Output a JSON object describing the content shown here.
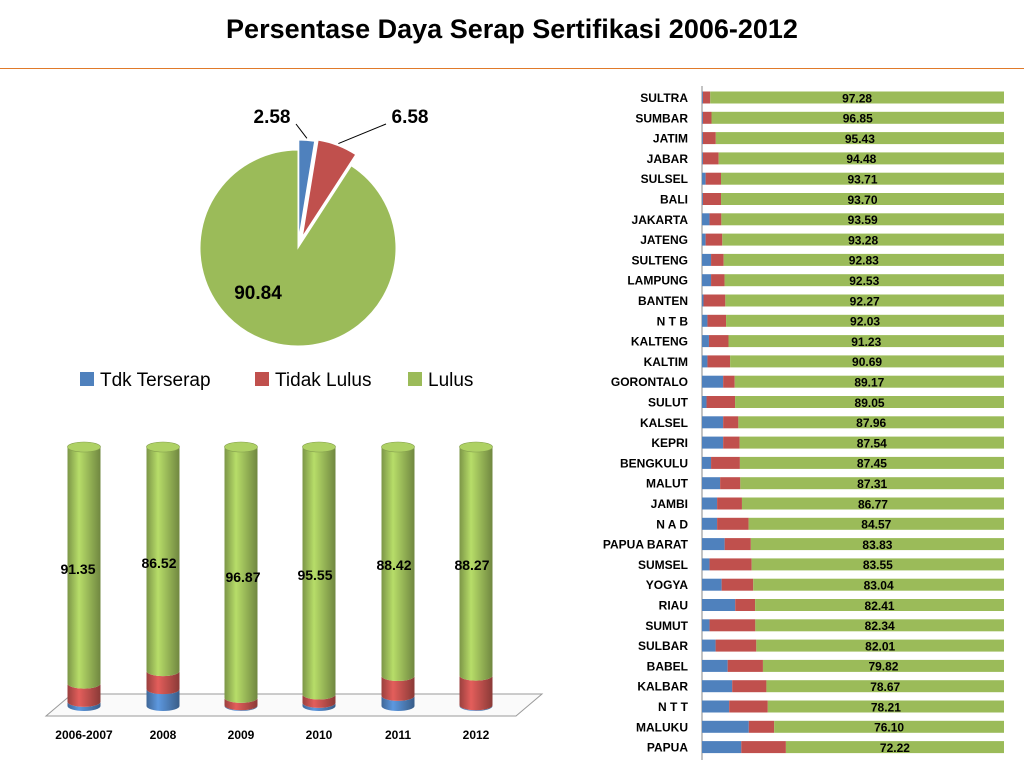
{
  "title": "Persentase Daya Serap Sertifikasi 2006-2012",
  "colors": {
    "tdk_terserap": "#4f81bd",
    "tidak_lulus": "#c0504d",
    "lulus": "#9bbb59",
    "rule": "#e07a2a"
  },
  "chart_data": [
    {
      "type": "pie",
      "series": [
        {
          "name": "Tdk Terserap",
          "value": 2.58
        },
        {
          "name": "Tidak Lulus",
          "value": 6.58
        },
        {
          "name": "Lulus",
          "value": 90.84
        }
      ],
      "legend_position": "bottom"
    },
    {
      "type": "bar",
      "stacked": true,
      "orientation": "vertical",
      "style": "3d-cylinder",
      "categories": [
        "2006-2007",
        "2008",
        "2009",
        "2010",
        "2011",
        "2012"
      ],
      "series": [
        {
          "name": "Tdk Terserap",
          "values": [
            1.6,
            6.5,
            0.3,
            1.2,
            3.9,
            0.3
          ]
        },
        {
          "name": "Tidak Lulus",
          "values": [
            7.05,
            6.98,
            2.83,
            3.25,
            7.68,
            11.43
          ]
        },
        {
          "name": "Lulus",
          "values": [
            91.35,
            86.52,
            96.87,
            95.55,
            88.42,
            88.27
          ]
        }
      ],
      "labels": [
        "91.35",
        "86.52",
        "96.87",
        "95.55",
        "88.42",
        "88.27"
      ],
      "ylim": [
        0,
        100
      ]
    },
    {
      "type": "bar",
      "stacked": true,
      "orientation": "horizontal",
      "categories": [
        "SULTRA",
        "SUMBAR",
        "JATIM",
        "JABAR",
        "SULSEL",
        "BALI",
        "JAKARTA",
        "JATENG",
        "SULTENG",
        "LAMPUNG",
        "BANTEN",
        "N T B",
        "KALTENG",
        "KALTIM",
        "GORONTALO",
        "SULUT",
        "KALSEL",
        "KEPRI",
        "BENGKULU",
        "MALUT",
        "JAMBI",
        "N A D",
        "PAPUA BARAT",
        "SUMSEL",
        "YOGYA",
        "RIAU",
        "SUMUT",
        "SULBAR",
        "BABEL",
        "KALBAR",
        "N T T",
        "MALUKU",
        "PAPUA"
      ],
      "series": [
        {
          "name": "Tdk Terserap",
          "values": [
            0.3,
            0.3,
            0.3,
            0.3,
            1.2,
            0.3,
            2.5,
            1.2,
            3.0,
            3.0,
            0.5,
            1.8,
            2.3,
            1.8,
            7.0,
            1.5,
            7.0,
            7.0,
            3.0,
            6.0,
            5.0,
            5.0,
            7.5,
            2.5,
            6.5,
            11.0,
            2.5,
            4.5,
            8.5,
            10.0,
            9.0,
            15.5,
            13.0
          ]
        },
        {
          "name": "Tidak Lulus",
          "values": [
            2.42,
            2.85,
            4.27,
            5.22,
            5.09,
            6.0,
            3.91,
            5.52,
            4.17,
            4.47,
            7.23,
            6.17,
            6.47,
            7.51,
            3.83,
            9.45,
            5.04,
            5.46,
            9.55,
            6.69,
            8.23,
            10.43,
            8.67,
            13.95,
            10.46,
            6.59,
            15.16,
            13.49,
            11.68,
            11.33,
            12.79,
            8.4,
            14.78
          ]
        },
        {
          "name": "Lulus",
          "values": [
            97.28,
            96.85,
            95.43,
            94.48,
            93.71,
            93.7,
            93.59,
            93.28,
            92.83,
            92.53,
            92.27,
            92.03,
            91.23,
            90.69,
            89.17,
            89.05,
            87.96,
            87.54,
            87.45,
            87.31,
            86.77,
            84.57,
            83.83,
            83.55,
            83.04,
            82.41,
            82.34,
            82.01,
            79.82,
            78.67,
            78.21,
            76.1,
            72.22
          ]
        }
      ],
      "labels": [
        "97.28",
        "96.85",
        "95.43",
        "94.48",
        "93.71",
        "93.70",
        "93.59",
        "93.28",
        "92.83",
        "92.53",
        "92.27",
        "92.03",
        "91.23",
        "90.69",
        "89.17",
        "89.05",
        "87.96",
        "87.54",
        "87.45",
        "87.31",
        "86.77",
        "84.57",
        "83.83",
        "83.55",
        "83.04",
        "82.41",
        "82.34",
        "82.01",
        "79.82",
        "78.67",
        "78.21",
        "76.10",
        "72.22"
      ],
      "xlim": [
        0,
        100
      ]
    }
  ]
}
